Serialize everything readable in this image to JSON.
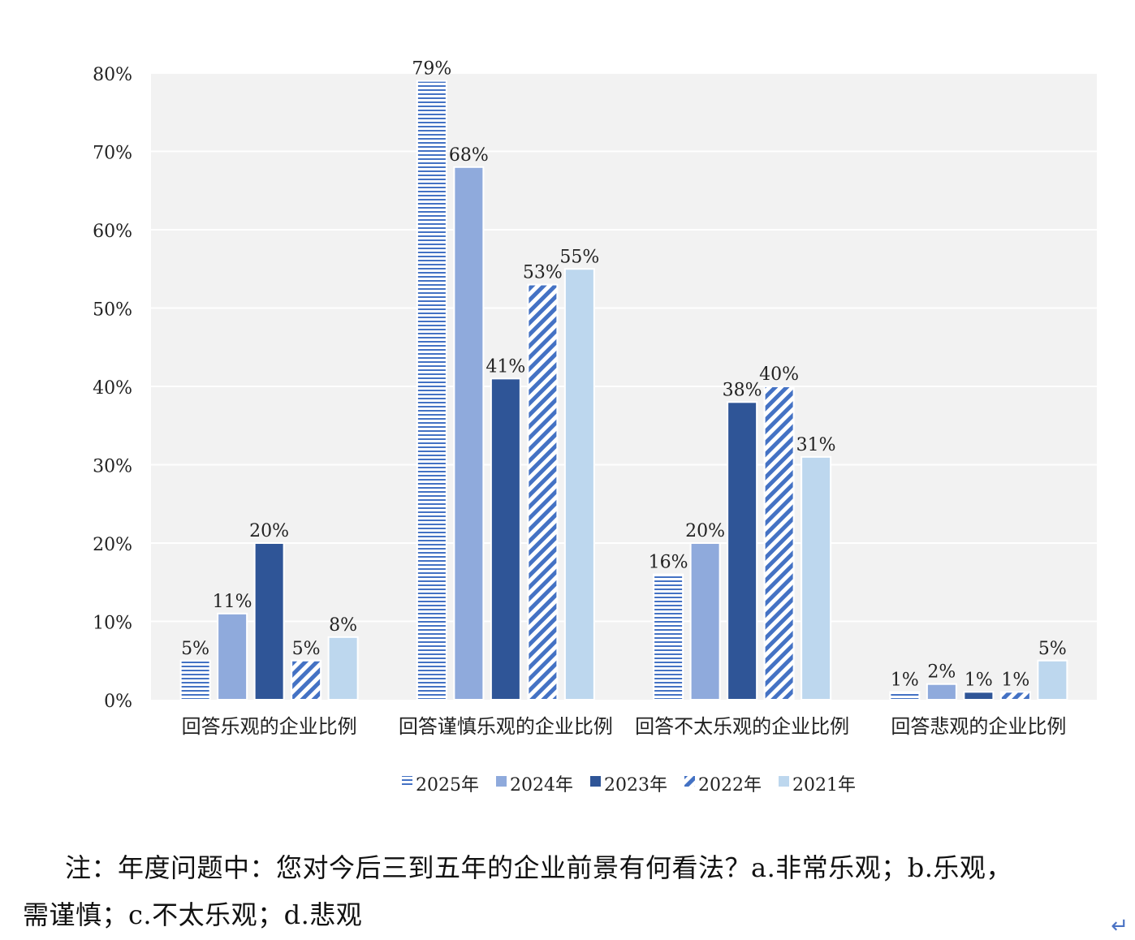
{
  "chart_data": {
    "type": "bar",
    "categories": [
      "回答乐观的企业比例",
      "回答谨慎乐观的企业比例",
      "回答不太乐观的企业比例",
      "回答悲观的企业比例"
    ],
    "series": [
      {
        "name": "2025年",
        "values": [
          5,
          79,
          16,
          1
        ],
        "labels": [
          "5%",
          "79%",
          "16%",
          "1%"
        ],
        "pattern": "horizontal-lines",
        "color": "#4472c4"
      },
      {
        "name": "2024年",
        "values": [
          11,
          68,
          20,
          2
        ],
        "labels": [
          "11%",
          "68%",
          "20%",
          "2%"
        ],
        "pattern": "solid",
        "color": "#8faadc"
      },
      {
        "name": "2023年",
        "values": [
          20,
          41,
          38,
          1
        ],
        "labels": [
          "20%",
          "41%",
          "38%",
          "1%"
        ],
        "pattern": "solid",
        "color": "#2f5597"
      },
      {
        "name": "2022年",
        "values": [
          5,
          53,
          40,
          1
        ],
        "labels": [
          "5%",
          "53%",
          "40%",
          "1%"
        ],
        "pattern": "diagonal-stripes",
        "color": "#4472c4"
      },
      {
        "name": "2021年",
        "values": [
          8,
          55,
          31,
          5
        ],
        "labels": [
          "8%",
          "55%",
          "31%",
          "5%"
        ],
        "pattern": "solid",
        "color": "#bdd7ee"
      }
    ],
    "yticks": [
      "0%",
      "10%",
      "20%",
      "30%",
      "40%",
      "50%",
      "60%",
      "70%",
      "80%"
    ],
    "ylim": [
      0,
      80
    ],
    "grid": true,
    "legend": "bottom",
    "plot_background": "#f2f2f2"
  },
  "note": "注：年度问题中：您对今后三到五年的企业前景有何看法？a.非常乐观；b.乐观，需谨慎；c.不太乐观；d.悲观",
  "return_mark": "↵"
}
